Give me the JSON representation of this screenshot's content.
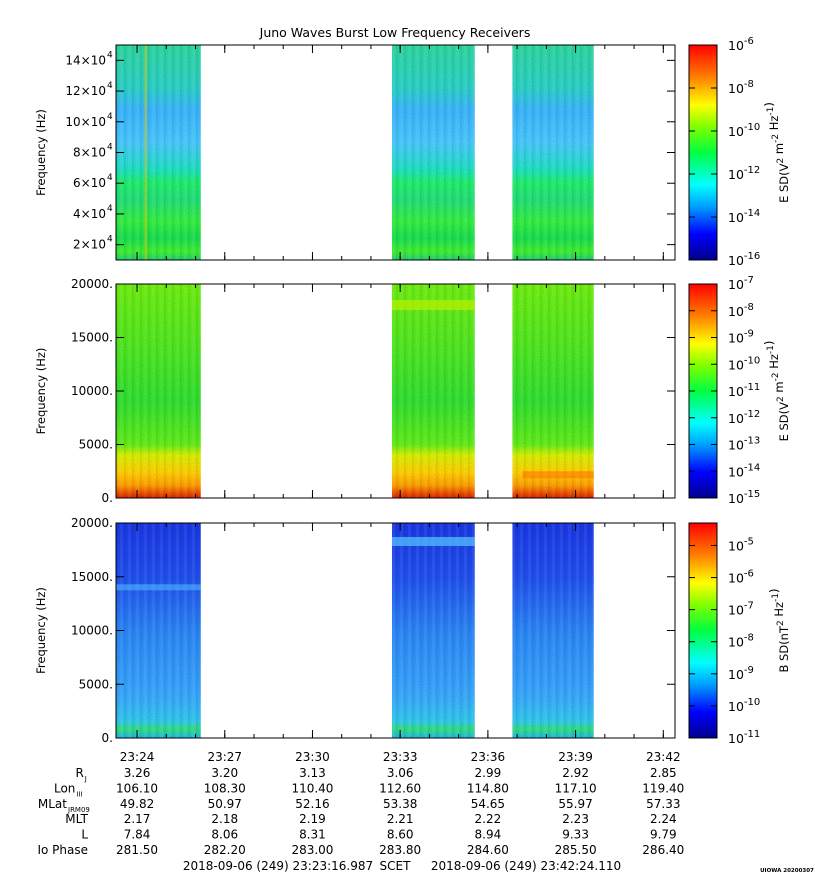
{
  "title": "Juno Waves Burst Low Frequency Receivers",
  "footer": {
    "start": "2018-09-06 (249) 23:23:16.987",
    "scet": "SCET",
    "end": "2018-09-06 (249) 23:42:24.110",
    "stamp": "UIOWA 20200307"
  },
  "chart_data": [
    {
      "type": "heatmap",
      "ylabel": "Frequency (Hz)",
      "colorbar_label": "E SD(V^2 m^-2 Hz^-1)",
      "colorbar_ticks": [
        "10^-6",
        "10^-8",
        "10^-10",
        "10^-12",
        "10^-14",
        "10^-16"
      ],
      "colorbar_range_exp": [
        -16,
        -6
      ],
      "ylim": [
        10000,
        150000
      ],
      "yticks": [
        20000,
        40000,
        60000,
        80000,
        100000,
        120000,
        140000
      ],
      "ytick_labels": [
        {
          "mant": "2×10",
          "exp": "4"
        },
        {
          "mant": "4×10",
          "exp": "4"
        },
        {
          "mant": "6×10",
          "exp": "4"
        },
        {
          "mant": "8×10",
          "exp": "4"
        },
        {
          "mant": "10×10",
          "exp": "4"
        },
        {
          "mant": "12×10",
          "exp": "4"
        },
        {
          "mant": "14×10",
          "exp": "4"
        }
      ]
    },
    {
      "type": "heatmap",
      "ylabel": "Frequency (Hz)",
      "colorbar_label": "E SD(V^2 m^-2 Hz^-1)",
      "colorbar_ticks": [
        "10^-7",
        "10^-8",
        "10^-9",
        "10^-10",
        "10^-11",
        "10^-12",
        "10^-13",
        "10^-14",
        "10^-15"
      ],
      "colorbar_range_exp": [
        -15,
        -7
      ],
      "ylim": [
        0,
        20000
      ],
      "yticks": [
        0,
        5000,
        10000,
        15000,
        20000
      ],
      "ytick_labels": [
        "0.",
        "5000.",
        "10000.",
        "15000.",
        "20000."
      ]
    },
    {
      "type": "heatmap",
      "ylabel": "Frequency (Hz)",
      "colorbar_label": "B SD(nT^2 Hz^-1)",
      "colorbar_ticks": [
        "10^-5",
        "10^-6",
        "10^-7",
        "10^-8",
        "10^-9",
        "10^-10",
        "10^-11"
      ],
      "colorbar_range_exp": [
        -11,
        -4.3
      ],
      "ylim": [
        0,
        20000
      ],
      "yticks": [
        0,
        5000,
        10000,
        15000,
        20000
      ],
      "ytick_labels": [
        "0.",
        "5000.",
        "10000.",
        "15000.",
        "20000."
      ]
    }
  ],
  "time_axis": {
    "range_minutes": [
      1403.28,
      1422.4
    ],
    "data_blocks": [
      [
        1403.28,
        1406.18
      ],
      [
        1412.72,
        1415.55
      ],
      [
        1416.84,
        1419.62
      ]
    ],
    "tick_minutes": [
      1404,
      1407,
      1410,
      1413,
      1416,
      1419,
      1422
    ],
    "tick_labels": [
      "23:24",
      "23:27",
      "23:30",
      "23:33",
      "23:36",
      "23:39",
      "23:42"
    ]
  },
  "ephemeris": {
    "rows": [
      {
        "label": "R",
        "sub": "J",
        "values": [
          "3.26",
          "3.20",
          "3.13",
          "3.06",
          "2.99",
          "2.92",
          "2.85"
        ]
      },
      {
        "label": "Lon",
        "sub": "III",
        "values": [
          "106.10",
          "108.30",
          "110.40",
          "112.60",
          "114.80",
          "117.10",
          "119.40"
        ]
      },
      {
        "label": "MLat",
        "sub": "JRM09",
        "values": [
          "49.82",
          "50.97",
          "52.16",
          "53.38",
          "54.65",
          "55.97",
          "57.33"
        ]
      },
      {
        "label": "MLT",
        "sub": "",
        "values": [
          "2.17",
          "2.18",
          "2.19",
          "2.21",
          "2.22",
          "2.23",
          "2.24"
        ]
      },
      {
        "label": "L",
        "sub": "",
        "values": [
          "7.84",
          "8.06",
          "8.31",
          "8.60",
          "8.94",
          "9.33",
          "9.79"
        ]
      },
      {
        "label": "Io Phase",
        "sub": "",
        "values": [
          "281.50",
          "282.20",
          "283.00",
          "283.80",
          "284.60",
          "285.50",
          "286.40"
        ]
      }
    ]
  }
}
